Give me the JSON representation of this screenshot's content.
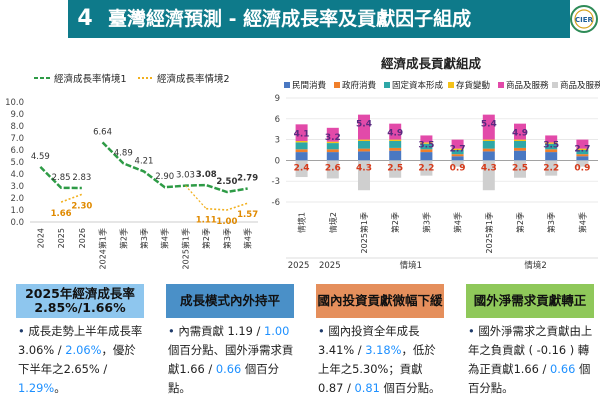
{
  "header": {
    "number": "4",
    "title": "臺灣經濟預測 - 經濟成長率及貢獻因子組成",
    "logo_text": "CIER"
  },
  "colors": {
    "header_bg": "#0e7a8a",
    "line1": "#2e9b46",
    "line2": "#f2b01e",
    "box1": "#4a90c8",
    "box2": "#8ec6ee",
    "box3": "#e58f5c",
    "box4": "#8fc85a",
    "highlight": "#1e90ff"
  },
  "chart_data": [
    {
      "type": "line",
      "legend": [
        "經濟成長率情境1",
        "經濟成長率情境2"
      ],
      "categories": [
        "2024",
        "2025",
        "2026",
        "2024第1季",
        "第2季",
        "第3季",
        "第4季",
        "2025第1季",
        "第2季",
        "第3季",
        "第4季"
      ],
      "series": [
        {
          "name": "經濟成長率情境1",
          "values": [
            4.59,
            2.85,
            2.83,
            6.64,
            4.89,
            4.21,
            2.9,
            3.03,
            3.08,
            2.5,
            2.79
          ]
        },
        {
          "name": "經濟成長率情境2",
          "values": [
            null,
            1.66,
            2.3,
            null,
            null,
            null,
            null,
            null,
            1.11,
            1.0,
            1.57
          ]
        }
      ],
      "label_texts": {
        "s1": [
          "4.59",
          "2.85",
          "2.83",
          "6.64",
          "4.89",
          "4.21",
          "2.90",
          "3.03",
          "3.08",
          "2.50",
          "2.79"
        ],
        "s2": [
          "1.66",
          "2.30",
          "1.11",
          "1.00",
          "1.57"
        ]
      },
      "y_ticks": [
        "0.0",
        "1.0",
        "2.0",
        "3.0",
        "4.0",
        "5.0",
        "6.0",
        "7.0",
        "8.0",
        "9.0",
        "10.0"
      ],
      "ylim": [
        0,
        10
      ]
    },
    {
      "type": "bar",
      "title": "經濟成長貢獻組成",
      "legend": [
        "民間消費",
        "政府消費",
        "固定資本形成",
        "存貨變動",
        "商品及服務",
        "商品及服務"
      ],
      "legend_colors": [
        "#4a78c2",
        "#f07f2a",
        "#2ea7a7",
        "#f5c21a",
        "#e24aa9",
        "#cfcfcf"
      ],
      "categories": [
        "情境1",
        "情境2",
        "2025第1季",
        "第2季",
        "第3季",
        "第4季",
        "2025第1季",
        "第2季",
        "第3季",
        "第4季"
      ],
      "group_labels": [
        "2025",
        "2025",
        "情境1",
        "情境2"
      ],
      "series": [
        {
          "name": "民間消費",
          "values": [
            1.2,
            1.2,
            1.3,
            1.4,
            1.2,
            0.6,
            1.3,
            1.4,
            1.2,
            0.6
          ]
        },
        {
          "name": "政府消費",
          "values": [
            0.4,
            0.4,
            0.4,
            0.4,
            0.4,
            0.3,
            0.4,
            0.4,
            0.4,
            0.3
          ]
        },
        {
          "name": "固定資本形成",
          "values": [
            1.0,
            0.9,
            1.1,
            1.0,
            0.8,
            0.6,
            1.1,
            1.0,
            0.8,
            0.6
          ]
        },
        {
          "name": "存貨變動",
          "values": [
            0.2,
            0.2,
            0.2,
            0.2,
            0.2,
            0.2,
            0.2,
            0.2,
            0.2,
            0.2
          ]
        },
        {
          "name": "商品及服務",
          "values": [
            2.4,
            2.0,
            3.6,
            2.3,
            1.0,
            1.3,
            3.6,
            2.3,
            1.0,
            1.3
          ]
        },
        {
          "name": "商品及服務",
          "values": [
            -2.4,
            -2.6,
            -4.3,
            -2.5,
            -2.2,
            -0.9,
            -4.3,
            -2.5,
            -2.2,
            -0.9
          ]
        }
      ],
      "top_labels": [
        "4.1",
        "3.2",
        "5.4",
        "4.9",
        "3.5",
        "2.7",
        "5.4",
        "4.9",
        "3.5",
        "2.7"
      ],
      "bottom_labels": [
        "2.4",
        "2.6",
        "4.3",
        "2.5",
        "2.2",
        "0.9",
        "4.3",
        "2.5",
        "2.2",
        "0.9"
      ],
      "y_ticks": [
        "9",
        "6",
        "3",
        "0",
        "-3",
        "-6"
      ],
      "ylim": [
        -6,
        9
      ]
    }
  ],
  "boxes": [
    {
      "title": "2025年經濟成長率<br>2.85%/1.66%",
      "body": "<span class='bullet'>•</span> 成長走勢上半年成長率3.06% / <span class='h'>2.06%</span>，優於下半年之2.65% / <span class='h'>1.29%</span>。"
    },
    {
      "title": "成長模式內外持平",
      "body": "<span class='bullet'>•</span> 內需貢獻 1.19 / <span class='h'>1.00</span> 個百分點、國外淨需求貢獻1.66 / <span class='h'>0.66</span> 個百分點。"
    },
    {
      "title": "國內投資貢獻微幅下緩",
      "body": "<span class='bullet'>•</span> 國內投資全年成長3.41% / <span class='h'>3.18%</span>，低於上年之5.30%；貢獻 0.87 / <span class='h'>0.81</span> 個百分點。"
    },
    {
      "title": "國外淨需求貢獻轉正",
      "body": "<span class='bullet'>•</span> 國外淨需求之貢獻由上年之負貢獻 ( -0.16 ) 轉為正貢獻1.66 / <span class='h'>0.66</span> 個百分點。"
    }
  ]
}
